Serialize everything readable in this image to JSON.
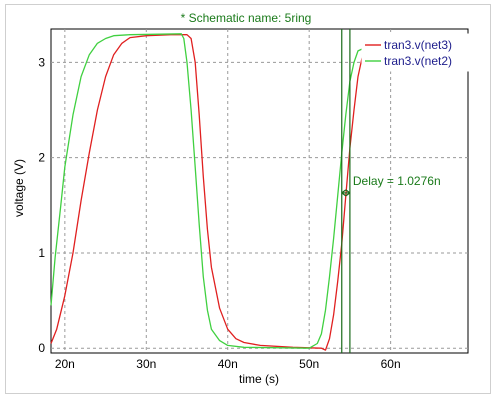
{
  "chart_data": {
    "type": "line",
    "title": "* Schematic name: 5ring",
    "xlabel": "time (s)",
    "ylabel": "voltage (V)",
    "xlim": [
      18.3,
      69.5
    ],
    "ylim": [
      -0.05,
      3.35
    ],
    "xticks": [
      20,
      30,
      40,
      50,
      60
    ],
    "xtick_labels": [
      "20n",
      "30n",
      "40n",
      "50n",
      "60n"
    ],
    "yticks": [
      0,
      1,
      2,
      3
    ],
    "ytick_labels": [
      "0",
      "1",
      "2",
      "3"
    ],
    "grid": true,
    "legend_position": "top-right",
    "series": [
      {
        "name": "tran3.v(net3)",
        "color": "#e02020",
        "points": [
          [
            18.3,
            0.05
          ],
          [
            19,
            0.2
          ],
          [
            20,
            0.55
          ],
          [
            21,
            1.0
          ],
          [
            22,
            1.55
          ],
          [
            23,
            2.05
          ],
          [
            24,
            2.5
          ],
          [
            25,
            2.85
          ],
          [
            26,
            3.08
          ],
          [
            27,
            3.2
          ],
          [
            28,
            3.26
          ],
          [
            30,
            3.28
          ],
          [
            33,
            3.29
          ],
          [
            35,
            3.29
          ],
          [
            35.5,
            3.25
          ],
          [
            36,
            3.0
          ],
          [
            36.5,
            2.45
          ],
          [
            37,
            1.8
          ],
          [
            37.5,
            1.25
          ],
          [
            38,
            0.85
          ],
          [
            39,
            0.42
          ],
          [
            40,
            0.2
          ],
          [
            41,
            0.1
          ],
          [
            42,
            0.06
          ],
          [
            44,
            0.03
          ],
          [
            48,
            0.01
          ],
          [
            51.5,
            0.0
          ],
          [
            52,
            -0.02
          ],
          [
            52.5,
            0.1
          ],
          [
            53,
            0.35
          ],
          [
            53.5,
            0.7
          ],
          [
            54,
            1.1
          ],
          [
            54.5,
            1.6
          ],
          [
            55,
            2.1
          ],
          [
            55.5,
            2.5
          ],
          [
            56,
            2.85
          ],
          [
            56.5,
            3.05
          ],
          [
            57,
            3.15
          ],
          [
            58,
            3.12
          ]
        ]
      },
      {
        "name": "tran3.v(net2)",
        "color": "#40d040",
        "points": [
          [
            18.3,
            0.45
          ],
          [
            18.8,
            0.95
          ],
          [
            19.5,
            1.5
          ],
          [
            20,
            1.9
          ],
          [
            21,
            2.45
          ],
          [
            22,
            2.85
          ],
          [
            23,
            3.08
          ],
          [
            24,
            3.2
          ],
          [
            25,
            3.25
          ],
          [
            26,
            3.28
          ],
          [
            28,
            3.29
          ],
          [
            34.3,
            3.3
          ],
          [
            34.6,
            3.25
          ],
          [
            35,
            3.0
          ],
          [
            35.5,
            2.5
          ],
          [
            36,
            1.9
          ],
          [
            36.5,
            1.3
          ],
          [
            37,
            0.75
          ],
          [
            37.5,
            0.4
          ],
          [
            38,
            0.2
          ],
          [
            39,
            0.08
          ],
          [
            40,
            0.03
          ],
          [
            42,
            0.01
          ],
          [
            50,
            0.0
          ],
          [
            51,
            0.05
          ],
          [
            51.5,
            0.15
          ],
          [
            52,
            0.4
          ],
          [
            52.5,
            0.75
          ],
          [
            53,
            1.15
          ],
          [
            53.5,
            1.6
          ],
          [
            54,
            2.05
          ],
          [
            54.5,
            2.45
          ],
          [
            55,
            2.8
          ],
          [
            55.5,
            3.0
          ],
          [
            56,
            3.12
          ],
          [
            57,
            3.16
          ],
          [
            58,
            3.15
          ]
        ]
      }
    ],
    "markers": [
      {
        "x": 54.0,
        "color": "#1a6a1a"
      },
      {
        "x": 55.0,
        "color": "#1a6a1a"
      }
    ],
    "annotation": {
      "text": "Delay = 1.0276n",
      "x": 54.5,
      "y": 1.63
    }
  }
}
